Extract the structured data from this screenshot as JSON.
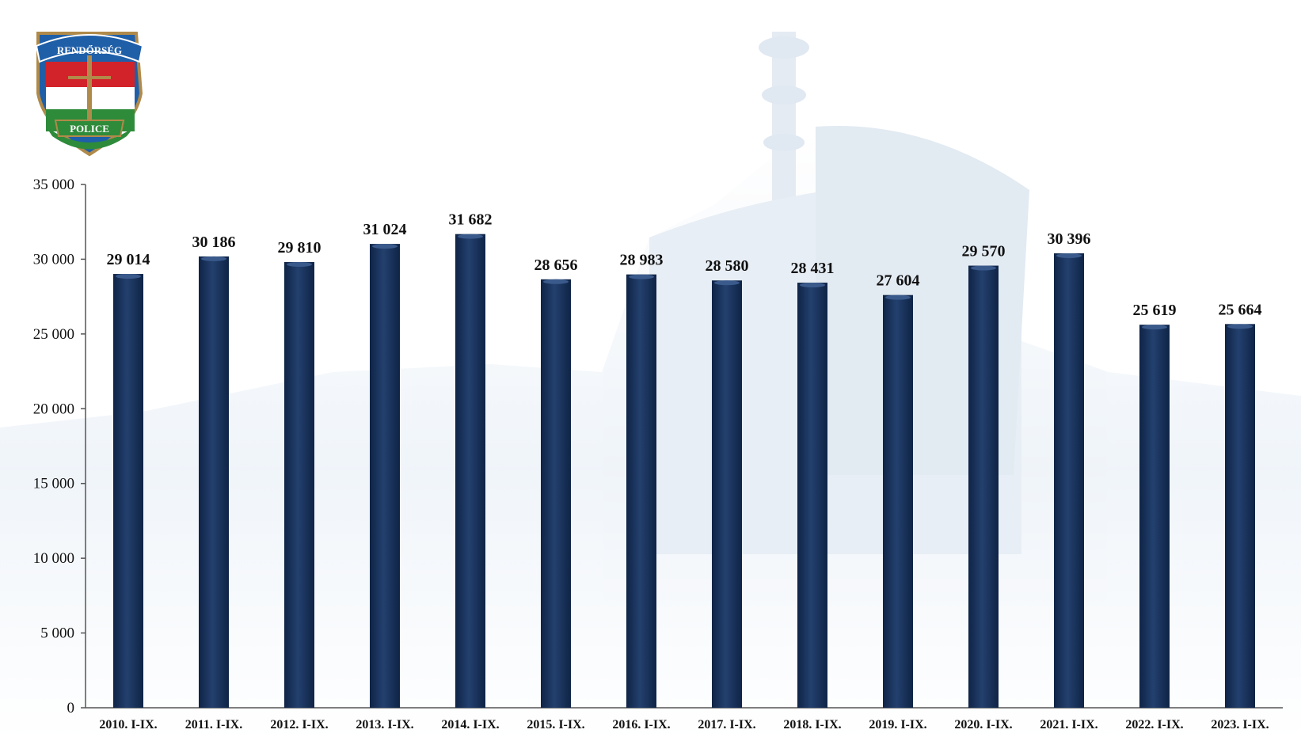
{
  "logo": {
    "top_text": "RENDŐRSÉG",
    "bottom_text": "POLICE",
    "colors": {
      "red": "#d2232a",
      "white": "#ffffff",
      "green": "#2e8b3a",
      "blue": "#1f5fa8",
      "gold": "#b08a4a"
    }
  },
  "colors": {
    "bar": "#1c3560",
    "bar_highlight": "#3a5a8c",
    "axis": "#555555",
    "background_tint": "#dbe6f1"
  },
  "chart_data": {
    "type": "bar",
    "title": "",
    "xlabel": "",
    "ylabel": "",
    "categories": [
      "2010. I-IX.",
      "2011. I-IX.",
      "2012. I-IX.",
      "2013. I-IX.",
      "2014. I-IX.",
      "2015. I-IX.",
      "2016. I-IX.",
      "2017. I-IX.",
      "2018. I-IX.",
      "2019. I-IX.",
      "2020. I-IX.",
      "2021. I-IX.",
      "2022. I-IX.",
      "2023. I-IX."
    ],
    "values": [
      29014,
      30186,
      29810,
      31024,
      31682,
      28656,
      28983,
      28580,
      28431,
      27604,
      29570,
      30396,
      25619,
      25664
    ],
    "data_labels": [
      "29 014",
      "30 186",
      "29 810",
      "31 024",
      "31 682",
      "28 656",
      "28 983",
      "28 580",
      "28 431",
      "27 604",
      "29 570",
      "30 396",
      "25 619",
      "25 664"
    ],
    "ylim": [
      0,
      35000
    ],
    "yticks": [
      0,
      5000,
      10000,
      15000,
      20000,
      25000,
      30000,
      35000
    ],
    "ytick_labels": [
      "0",
      "5 000",
      "10 000",
      "15 000",
      "20 000",
      "25 000",
      "30 000",
      "35 000"
    ],
    "grid": false,
    "legend": "none"
  }
}
